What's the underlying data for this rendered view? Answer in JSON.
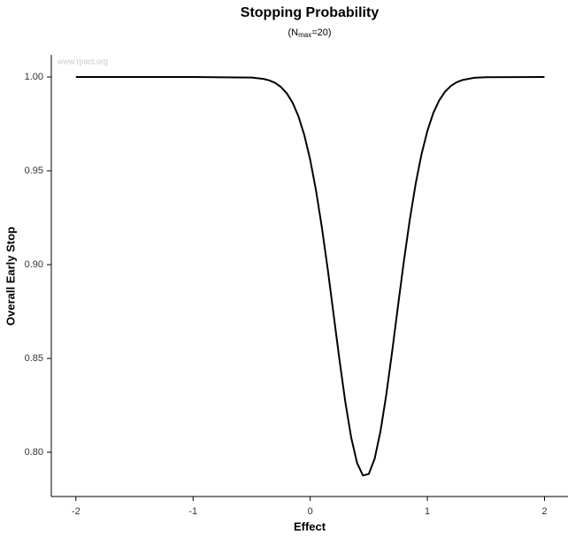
{
  "chart_data": {
    "type": "line",
    "title": "Stopping Probability",
    "subtitle": {
      "prefix": "(N",
      "subscript": "max",
      "suffix": "=20)"
    },
    "watermark": "www.rpact.org",
    "x_label": "Effect",
    "y_label": "Overall Early Stop",
    "x": [
      -2,
      -1,
      -0.5,
      -0.4,
      -0.35,
      -0.3,
      -0.25,
      -0.2,
      -0.15,
      -0.1,
      -0.05,
      0,
      0.05,
      0.1,
      0.15,
      0.2,
      0.25,
      0.3,
      0.35,
      0.4,
      0.45,
      0.5,
      0.55,
      0.6,
      0.65,
      0.7,
      0.75,
      0.8,
      0.85,
      0.9,
      0.95,
      1,
      1.05,
      1.1,
      1.15,
      1.2,
      1.25,
      1.3,
      1.4,
      1.5,
      2
    ],
    "series": [
      {
        "color": "#000000",
        "values": [
          1,
          1,
          0.9997,
          0.999,
          0.9982,
          0.9969,
          0.9947,
          0.9913,
          0.9863,
          0.979,
          0.969,
          0.9559,
          0.9394,
          0.9197,
          0.8974,
          0.8733,
          0.8492,
          0.8267,
          0.8078,
          0.7943,
          0.7876,
          0.7884,
          0.7965,
          0.8112,
          0.8309,
          0.8539,
          0.8782,
          0.902,
          0.9239,
          0.943,
          0.9588,
          0.9712,
          0.9807,
          0.9874,
          0.9921,
          0.9952,
          0.9972,
          0.9984,
          0.9996,
          0.9999,
          1
        ]
      }
    ],
    "xlim": [
      -2.21,
      2.2
    ],
    "ylim": [
      0.7764,
      1.0118
    ],
    "xticks": [
      -2,
      -1,
      0,
      1,
      2
    ],
    "yticks": [
      {
        "value": 0.8,
        "label": "0.80"
      },
      {
        "value": 0.85,
        "label": "0.85"
      },
      {
        "value": 0.9,
        "label": "0.90"
      },
      {
        "value": 0.95,
        "label": "0.95"
      },
      {
        "value": 1,
        "label": "1.00"
      }
    ],
    "grid": false
  }
}
